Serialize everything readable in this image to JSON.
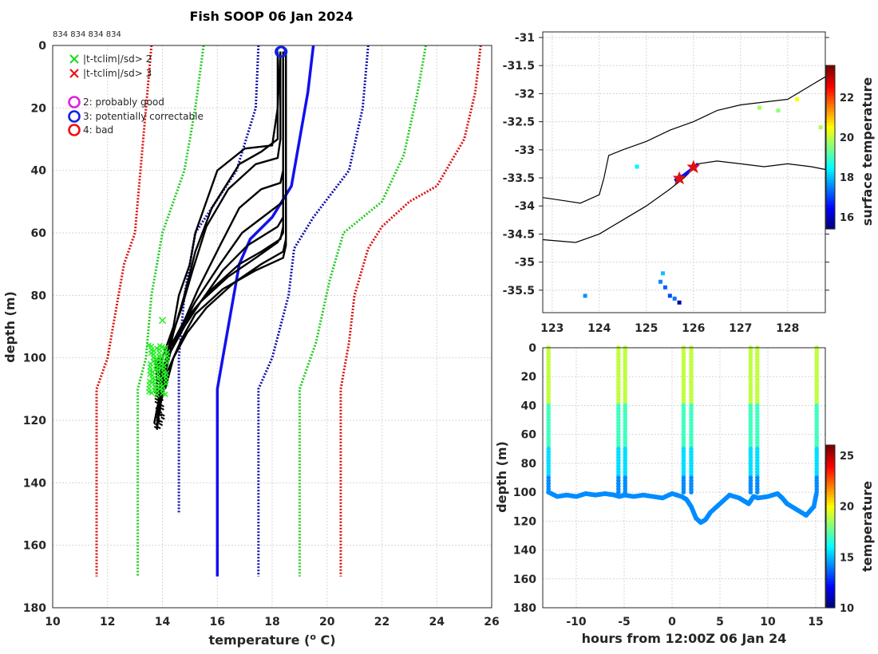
{
  "chart_data": [
    {
      "type": "line",
      "title": "Fish SOOP 06 Jan 2024",
      "cruise_ids": "834 834 834 834",
      "xlabel": "temperature (",
      "xlabel_sup": "o",
      "xlabel_end": " C)",
      "ylabel": "depth (m)",
      "xlim": [
        10,
        26
      ],
      "ylim": [
        0,
        180
      ],
      "xticks": [
        10,
        12,
        14,
        16,
        18,
        20,
        22,
        24,
        26
      ],
      "yticks": [
        0,
        20,
        40,
        60,
        80,
        100,
        120,
        140,
        160,
        180
      ],
      "legend": [
        {
          "marker": "x",
          "color": "#22dd22",
          "label": "|t-tclim|/sd> 2"
        },
        {
          "marker": "x",
          "color": "#ee1111",
          "label": "|t-tclim|/sd> 3"
        },
        {
          "marker": "o",
          "color": "#dd22dd",
          "label": "2: probably good"
        },
        {
          "marker": "o",
          "color": "#1122dd",
          "label": "3: potentially correctable"
        },
        {
          "marker": "o",
          "color": "#ee1111",
          "label": "4: bad"
        }
      ],
      "climatology": [
        {
          "name": "mean",
          "color": "#1111ee",
          "style": "solid",
          "points": [
            [
              19.5,
              0
            ],
            [
              19.3,
              15
            ],
            [
              19.0,
              30
            ],
            [
              18.7,
              45
            ],
            [
              18.0,
              55
            ],
            [
              17.2,
              62
            ],
            [
              16.8,
              70
            ],
            [
              16.6,
              80
            ],
            [
              16.4,
              90
            ],
            [
              16.2,
              100
            ],
            [
              16.0,
              110
            ],
            [
              16.0,
              140
            ],
            [
              16.0,
              170
            ]
          ]
        },
        {
          "name": "mean-1sd",
          "color": "#1111aa",
          "style": "dot",
          "points": [
            [
              17.5,
              0
            ],
            [
              17.4,
              20
            ],
            [
              16.7,
              40
            ],
            [
              15.2,
              60
            ],
            [
              14.8,
              80
            ],
            [
              14.6,
              100
            ],
            [
              14.6,
              120
            ],
            [
              14.6,
              150
            ]
          ]
        },
        {
          "name": "mean+1sd",
          "color": "#1111aa",
          "style": "dot",
          "points": [
            [
              21.5,
              0
            ],
            [
              21.3,
              20
            ],
            [
              20.8,
              40
            ],
            [
              19.5,
              55
            ],
            [
              18.8,
              65
            ],
            [
              18.6,
              80
            ],
            [
              18.0,
              100
            ],
            [
              17.5,
              110
            ],
            [
              17.5,
              170
            ]
          ]
        },
        {
          "name": "mean-2sd",
          "color": "#22cc22",
          "style": "dot",
          "points": [
            [
              15.5,
              0
            ],
            [
              15.2,
              20
            ],
            [
              14.8,
              40
            ],
            [
              14.0,
              60
            ],
            [
              13.6,
              80
            ],
            [
              13.4,
              100
            ],
            [
              13.1,
              110
            ],
            [
              13.1,
              150
            ],
            [
              13.1,
              170
            ]
          ]
        },
        {
          "name": "mean+2sd",
          "color": "#22cc22",
          "style": "dot",
          "points": [
            [
              23.6,
              0
            ],
            [
              23.3,
              15
            ],
            [
              22.8,
              35
            ],
            [
              22.0,
              50
            ],
            [
              20.6,
              60
            ],
            [
              20.1,
              75
            ],
            [
              19.6,
              95
            ],
            [
              19.0,
              110
            ],
            [
              19.0,
              170
            ]
          ]
        },
        {
          "name": "mean-3sd",
          "color": "#dd1111",
          "style": "dot",
          "points": [
            [
              13.6,
              0
            ],
            [
              13.4,
              20
            ],
            [
              13.2,
              40
            ],
            [
              13.0,
              60
            ],
            [
              12.6,
              70
            ],
            [
              12.2,
              90
            ],
            [
              12.0,
              100
            ],
            [
              11.6,
              110
            ],
            [
              11.6,
              150
            ],
            [
              11.6,
              170
            ]
          ]
        },
        {
          "name": "mean+3sd",
          "color": "#dd1111",
          "style": "dot",
          "points": [
            [
              25.6,
              0
            ],
            [
              25.4,
              15
            ],
            [
              25.0,
              30
            ],
            [
              24.0,
              45
            ],
            [
              23.0,
              50
            ],
            [
              22.0,
              58
            ],
            [
              21.5,
              65
            ],
            [
              21.0,
              80
            ],
            [
              20.8,
              95
            ],
            [
              20.5,
              110
            ],
            [
              20.5,
              170
            ]
          ]
        }
      ],
      "profiles": [
        [
          [
            18.3,
            2
          ],
          [
            18.2,
            20
          ],
          [
            18.0,
            32
          ],
          [
            17.0,
            33
          ],
          [
            16.0,
            40
          ],
          [
            15.2,
            60
          ],
          [
            15.0,
            70
          ],
          [
            14.6,
            80
          ],
          [
            14.4,
            90
          ],
          [
            14.0,
            100
          ],
          [
            13.9,
            110
          ],
          [
            13.8,
            122
          ]
        ],
        [
          [
            18.3,
            2
          ],
          [
            18.3,
            30
          ],
          [
            18.2,
            36
          ],
          [
            17.4,
            38
          ],
          [
            16.4,
            46
          ],
          [
            15.6,
            58
          ],
          [
            15.1,
            72
          ],
          [
            14.7,
            84
          ],
          [
            14.3,
            94
          ],
          [
            14.0,
            105
          ],
          [
            13.8,
            118
          ]
        ],
        [
          [
            18.4,
            2
          ],
          [
            18.4,
            40
          ],
          [
            18.3,
            44
          ],
          [
            17.6,
            46
          ],
          [
            16.8,
            52
          ],
          [
            16.1,
            64
          ],
          [
            15.3,
            78
          ],
          [
            14.8,
            88
          ],
          [
            14.2,
            98
          ],
          [
            13.9,
            112
          ],
          [
            13.7,
            121
          ]
        ],
        [
          [
            18.4,
            2
          ],
          [
            18.4,
            50
          ],
          [
            17.8,
            54
          ],
          [
            16.9,
            60
          ],
          [
            16.1,
            70
          ],
          [
            15.2,
            82
          ],
          [
            14.6,
            92
          ],
          [
            14.1,
            102
          ],
          [
            13.9,
            114
          ]
        ],
        [
          [
            18.4,
            2
          ],
          [
            18.4,
            55
          ],
          [
            18.2,
            58
          ],
          [
            17.1,
            64
          ],
          [
            16.2,
            72
          ],
          [
            15.4,
            82
          ],
          [
            14.7,
            90
          ],
          [
            14.2,
            100
          ],
          [
            13.9,
            112
          ]
        ],
        [
          [
            18.4,
            2
          ],
          [
            18.4,
            58
          ],
          [
            18.3,
            62
          ],
          [
            17.6,
            66
          ],
          [
            16.8,
            70
          ],
          [
            15.8,
            78
          ],
          [
            15.0,
            86
          ],
          [
            14.3,
            96
          ],
          [
            14.0,
            106
          ]
        ],
        [
          [
            18.4,
            2
          ],
          [
            18.4,
            60
          ],
          [
            18.2,
            63
          ],
          [
            17.4,
            68
          ],
          [
            16.4,
            74
          ],
          [
            15.4,
            82
          ],
          [
            14.8,
            90
          ],
          [
            14.3,
            98
          ],
          [
            14.0,
            108
          ],
          [
            13.9,
            118
          ]
        ],
        [
          [
            18.5,
            2
          ],
          [
            18.5,
            62
          ],
          [
            18.4,
            66
          ],
          [
            17.6,
            70
          ],
          [
            16.6,
            76
          ],
          [
            15.6,
            84
          ],
          [
            14.9,
            92
          ],
          [
            14.4,
            100
          ],
          [
            14.1,
            110
          ]
        ],
        [
          [
            18.5,
            2
          ],
          [
            18.5,
            64
          ],
          [
            18.4,
            68
          ],
          [
            17.4,
            72
          ],
          [
            16.2,
            78
          ],
          [
            15.2,
            86
          ],
          [
            14.7,
            94
          ],
          [
            14.2,
            104
          ],
          [
            13.9,
            116
          ]
        ],
        [
          [
            18.2,
            2
          ],
          [
            18.2,
            30
          ],
          [
            17.6,
            34
          ],
          [
            16.8,
            38
          ],
          [
            15.8,
            52
          ],
          [
            15.2,
            66
          ],
          [
            14.8,
            80
          ],
          [
            14.4,
            92
          ],
          [
            14.1,
            104
          ],
          [
            13.9,
            116
          ],
          [
            13.8,
            123
          ]
        ]
      ],
      "flags_good": [
        [
          18.3,
          2
        ],
        [
          18.35,
          2
        ]
      ],
      "outliers_2sd_region": {
        "xmin": 13.5,
        "xmax": 14.2,
        "ymin": 96,
        "ymax": 112
      },
      "outlier_point": [
        14.0,
        88
      ]
    },
    {
      "type": "scatter",
      "xlim": [
        122.8,
        128.8
      ],
      "ylim": [
        -35.9,
        -30.9
      ],
      "xticks": [
        123,
        124,
        125,
        126,
        127,
        128
      ],
      "yticks": [
        -31,
        -31.5,
        -32,
        -32.5,
        -33,
        -33.5,
        -34,
        -34.5,
        -35,
        -35.5
      ],
      "ytick_labels": [
        "-31",
        "-31.5",
        "-32",
        "-32.5",
        "-33",
        "-33.5",
        "-34",
        "-34.5",
        "-35",
        "-35.5"
      ],
      "colorbar_label": "surface temperature",
      "colorbar_range": [
        15.4,
        23.6
      ],
      "colorbar_ticks": [
        16,
        18,
        20,
        22
      ],
      "track": [
        [
          125.6,
          -33.55
        ],
        [
          125.8,
          -33.45
        ],
        [
          126.0,
          -33.32
        ],
        [
          126.1,
          -33.25
        ]
      ],
      "track_starts": [
        [
          125.7,
          -33.5
        ],
        [
          126.0,
          -33.3
        ]
      ],
      "contour_north": [
        [
          122.8,
          -33.85
        ],
        [
          123.2,
          -33.9
        ],
        [
          123.6,
          -33.95
        ],
        [
          124.0,
          -33.8
        ],
        [
          124.1,
          -33.5
        ],
        [
          124.2,
          -33.1
        ],
        [
          124.5,
          -33.0
        ],
        [
          125.0,
          -32.85
        ],
        [
          125.5,
          -32.65
        ],
        [
          126.0,
          -32.5
        ],
        [
          126.5,
          -32.3
        ],
        [
          127.0,
          -32.2
        ],
        [
          127.5,
          -32.15
        ],
        [
          128.0,
          -32.1
        ],
        [
          128.5,
          -31.85
        ],
        [
          128.8,
          -31.7
        ]
      ],
      "contour_south": [
        [
          122.8,
          -34.6
        ],
        [
          123.5,
          -34.65
        ],
        [
          124.0,
          -34.5
        ],
        [
          124.5,
          -34.25
        ],
        [
          125.0,
          -34.0
        ],
        [
          125.5,
          -33.7
        ],
        [
          125.8,
          -33.5
        ],
        [
          126.1,
          -33.25
        ],
        [
          126.5,
          -33.2
        ],
        [
          127.0,
          -33.25
        ],
        [
          127.5,
          -33.3
        ],
        [
          128.0,
          -33.25
        ],
        [
          128.5,
          -33.3
        ],
        [
          128.8,
          -33.35
        ]
      ],
      "sst_patches": [
        {
          "lon": 125.3,
          "lat": -35.35,
          "t": 17.5
        },
        {
          "lon": 125.4,
          "lat": -35.45,
          "t": 17.2
        },
        {
          "lon": 125.5,
          "lat": -35.6,
          "t": 17.0
        },
        {
          "lon": 125.6,
          "lat": -35.65,
          "t": 17.4
        },
        {
          "lon": 125.35,
          "lat": -35.2,
          "t": 18.0
        },
        {
          "lon": 125.7,
          "lat": -35.72,
          "t": 15.6
        },
        {
          "lon": 123.7,
          "lat": -35.6,
          "t": 17.6
        },
        {
          "lon": 124.8,
          "lat": -33.3,
          "t": 18.4
        },
        {
          "lon": 127.8,
          "lat": -32.3,
          "t": 19.6
        },
        {
          "lon": 127.4,
          "lat": -32.25,
          "t": 19.8
        },
        {
          "lon": 128.7,
          "lat": -32.6,
          "t": 19.9
        },
        {
          "lon": 128.2,
          "lat": -32.1,
          "t": 20.5
        }
      ]
    },
    {
      "type": "scatter",
      "xlabel": "hours from 12:00Z 06 Jan 24",
      "ylabel": "depth (m)",
      "xlim": [
        -13.5,
        16
      ],
      "ylim": [
        0,
        180
      ],
      "xticks": [
        -10,
        -5,
        0,
        5,
        10,
        15
      ],
      "yticks": [
        0,
        20,
        40,
        60,
        80,
        100,
        120,
        140,
        160,
        180
      ],
      "colorbar_label": "temperature",
      "colorbar_range": [
        10,
        26
      ],
      "colorbar_ticks": [
        10,
        15,
        20,
        25
      ],
      "casts": [
        -12.9,
        -5.6,
        -4.9,
        1.2,
        2.0,
        8.2,
        8.9,
        15.1
      ],
      "bottom_trace": [
        [
          -12.9,
          100
        ],
        [
          -12,
          103
        ],
        [
          -11,
          102
        ],
        [
          -10,
          103
        ],
        [
          -9,
          101
        ],
        [
          -8,
          102
        ],
        [
          -7,
          101
        ],
        [
          -6,
          102
        ],
        [
          -5.5,
          103
        ],
        [
          -5,
          102
        ],
        [
          -4,
          103
        ],
        [
          -3,
          102
        ],
        [
          -2,
          103
        ],
        [
          -1,
          104
        ],
        [
          0,
          101
        ],
        [
          1,
          103
        ],
        [
          1.5,
          105
        ],
        [
          2,
          110
        ],
        [
          2.5,
          118
        ],
        [
          3,
          121
        ],
        [
          3.5,
          119
        ],
        [
          4,
          114
        ],
        [
          5,
          108
        ],
        [
          6,
          102
        ],
        [
          7,
          104
        ],
        [
          7.5,
          106
        ],
        [
          8,
          108
        ],
        [
          8.5,
          103
        ],
        [
          9,
          104
        ],
        [
          10,
          103
        ],
        [
          11,
          101
        ],
        [
          11.5,
          104
        ],
        [
          12,
          108
        ],
        [
          13,
          112
        ],
        [
          14,
          116
        ],
        [
          14.8,
          110
        ],
        [
          15.1,
          100
        ]
      ]
    }
  ]
}
